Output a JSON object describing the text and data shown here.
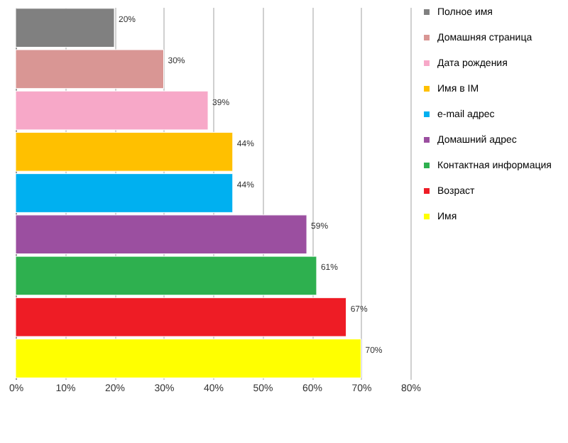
{
  "chart_data": {
    "type": "bar",
    "orientation": "horizontal",
    "categories": [
      null,
      null,
      null,
      null,
      null,
      null,
      null,
      null,
      null
    ],
    "series": [
      {
        "name": "Полное имя",
        "color": "#808080",
        "values": [
          20,
          null,
          null,
          null,
          null,
          null,
          null,
          null,
          null
        ],
        "value_labels": [
          "20%",
          null,
          null,
          null,
          null,
          null,
          null,
          null,
          null
        ]
      },
      {
        "name": "Домашняя страница",
        "color": "#d99694",
        "values": [
          null,
          30,
          null,
          null,
          null,
          null,
          null,
          null,
          null
        ],
        "value_labels": [
          null,
          "30%",
          null,
          null,
          null,
          null,
          null,
          null,
          null
        ]
      },
      {
        "name": "Дата рождения",
        "color": "#f7a8c8",
        "values": [
          null,
          null,
          39,
          null,
          null,
          null,
          null,
          null,
          null
        ],
        "value_labels": [
          null,
          null,
          "39%",
          null,
          null,
          null,
          null,
          null,
          null
        ]
      },
      {
        "name": "Имя в IM",
        "color": "#ffc000",
        "values": [
          null,
          null,
          null,
          44,
          null,
          null,
          null,
          null,
          null
        ],
        "value_labels": [
          null,
          null,
          null,
          "44%",
          null,
          null,
          null,
          null,
          null
        ]
      },
      {
        "name": "e-mail адрес",
        "color": "#00b0f0",
        "values": [
          null,
          null,
          null,
          null,
          44,
          null,
          null,
          null,
          null
        ],
        "value_labels": [
          null,
          null,
          null,
          null,
          "44%",
          null,
          null,
          null,
          null
        ]
      },
      {
        "name": "Домашний адрес",
        "color": "#9b4fa0",
        "values": [
          null,
          null,
          null,
          null,
          null,
          59,
          null,
          null,
          null
        ],
        "value_labels": [
          null,
          null,
          null,
          null,
          null,
          "59%",
          null,
          null,
          null
        ]
      },
      {
        "name": "Контактная информация",
        "color": "#2eb04f",
        "values": [
          null,
          null,
          null,
          null,
          null,
          null,
          61,
          null,
          null
        ],
        "value_labels": [
          null,
          null,
          null,
          null,
          null,
          null,
          "61%",
          null,
          null
        ]
      },
      {
        "name": "Возраст",
        "color": "#ee1c25",
        "values": [
          null,
          null,
          null,
          null,
          null,
          null,
          null,
          67,
          null
        ],
        "value_labels": [
          null,
          null,
          null,
          null,
          null,
          null,
          null,
          "67%",
          null
        ]
      },
      {
        "name": "Имя",
        "color": "#ffff00",
        "values": [
          null,
          null,
          null,
          null,
          null,
          null,
          null,
          null,
          70
        ],
        "value_labels": [
          null,
          null,
          null,
          null,
          null,
          null,
          null,
          null,
          "70%"
        ]
      }
    ],
    "xlim": [
      0,
      80
    ],
    "xticks": [
      {
        "value": 0,
        "label": "0%"
      },
      {
        "value": 10,
        "label": "10%"
      },
      {
        "value": 20,
        "label": "20%"
      },
      {
        "value": 30,
        "label": "30%"
      },
      {
        "value": 40,
        "label": "40%"
      },
      {
        "value": 50,
        "label": "50%"
      },
      {
        "value": 60,
        "label": "60%"
      },
      {
        "value": 70,
        "label": "70%"
      },
      {
        "value": 80,
        "label": "80%"
      }
    ],
    "grid": "x",
    "legend": "right",
    "tick_labels": "x"
  }
}
